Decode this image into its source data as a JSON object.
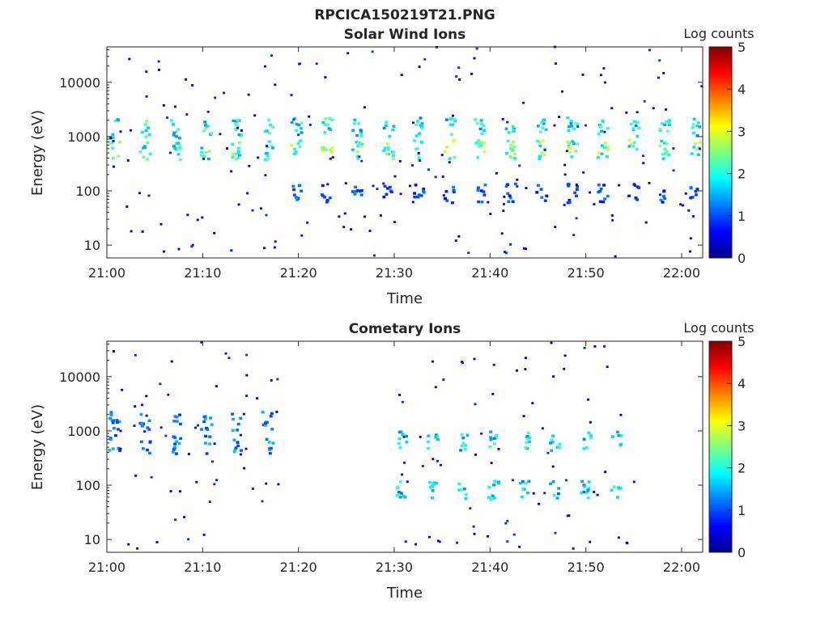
{
  "figure_title": "RPCICA150219T21.PNG",
  "chart_data": [
    {
      "type": "heatmap",
      "title": "Solar Wind Ions",
      "xlabel": "Time",
      "ylabel": "Energy (eV)",
      "x_range": [
        "21:00",
        "22:02"
      ],
      "x_ticks": [
        "21:00",
        "21:10",
        "21:20",
        "21:30",
        "21:40",
        "21:50",
        "22:00"
      ],
      "y_scale": "log",
      "y_range": [
        5.8,
        45000
      ],
      "y_ticks": [
        {
          "value": 10,
          "label": "10"
        },
        {
          "value": 100,
          "label": "100"
        },
        {
          "value": 1000,
          "label": "1000"
        },
        {
          "value": 10000,
          "label": "10000"
        }
      ],
      "colorbar": {
        "label": "Log counts",
        "range": [
          0,
          5
        ],
        "ticks": [
          "0",
          "1",
          "2",
          "3",
          "4",
          "5"
        ],
        "colormap": "jet"
      },
      "grid": false,
      "features": [
        {
          "description": "high-cadence energy sweeps 21:00-21:18",
          "time_start_min": 0,
          "time_end_min": 18,
          "sweep_period_min": 3.2,
          "energy_bands_eV": [
            {
              "center": 1400,
              "log_counts": 2.3
            },
            {
              "center": 550,
              "log_counts": 2.5
            }
          ]
        },
        {
          "description": "periodic bursts 21:19-22:02",
          "time_start_min": 19,
          "time_end_min": 62,
          "burst_period_min": 3.2,
          "energy_bands_eV": [
            {
              "center": 1500,
              "log_counts": 2.2
            },
            {
              "center": 580,
              "log_counts": 2.8
            },
            {
              "center": 90,
              "log_counts": 1.2
            }
          ]
        }
      ]
    },
    {
      "type": "heatmap",
      "title": "Cometary Ions",
      "xlabel": "Time",
      "ylabel": "Energy (eV)",
      "x_range": [
        "21:00",
        "22:02"
      ],
      "x_ticks": [
        "21:00",
        "21:10",
        "21:20",
        "21:30",
        "21:40",
        "21:50",
        "22:00"
      ],
      "y_scale": "log",
      "y_range": [
        5.8,
        45000
      ],
      "y_ticks": [
        {
          "value": 10,
          "label": "10"
        },
        {
          "value": 100,
          "label": "100"
        },
        {
          "value": 1000,
          "label": "1000"
        },
        {
          "value": 10000,
          "label": "10000"
        }
      ],
      "colorbar": {
        "label": "Log counts",
        "range": [
          0,
          5
        ],
        "ticks": [
          "0",
          "1",
          "2",
          "3",
          "4",
          "5"
        ],
        "colormap": "jet"
      },
      "grid": false,
      "features": [
        {
          "description": "sparse sweeps 21:00-21:18",
          "time_start_min": 0,
          "time_end_min": 18,
          "energy_bands_eV": [
            {
              "center": 1500,
              "log_counts": 1.5
            },
            {
              "center": 550,
              "log_counts": 1.5
            }
          ]
        },
        {
          "description": "low-energy cometary bursts 21:30-21:55",
          "time_start_min": 30,
          "time_end_min": 55,
          "energy_bands_eV": [
            {
              "center": 80,
              "log_counts": 2.0
            },
            {
              "center": 650,
              "log_counts": 2.2
            }
          ]
        }
      ]
    }
  ]
}
